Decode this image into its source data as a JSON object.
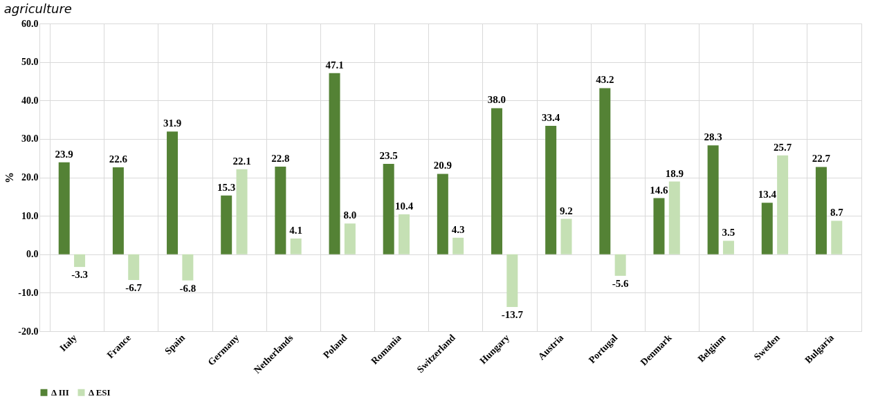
{
  "chart_data": {
    "type": "bar",
    "title": "agriculture",
    "ylabel": "%",
    "categories": [
      "Italy",
      "France",
      "Spain",
      "Germany",
      "Netherlands",
      "Poland",
      "Romania",
      "Switzerland",
      "Hungary",
      "Austria",
      "Portugal",
      "Denmark",
      "Belgium",
      "Sweden",
      "Bulgaria"
    ],
    "series": [
      {
        "name": "Δ III",
        "color": "#548235",
        "values": [
          23.9,
          22.6,
          31.9,
          15.3,
          22.8,
          47.1,
          23.5,
          20.9,
          38.0,
          33.4,
          43.2,
          14.6,
          28.3,
          13.4,
          22.7
        ],
        "value_labels": [
          "23.9",
          "22.6",
          "31.9",
          "15.3",
          "22.8",
          "47.1",
          "23.5",
          "20.9",
          "38.0",
          "33.4",
          "43.2",
          "14.6",
          "28.3",
          "13.4",
          "22.7"
        ]
      },
      {
        "name": "Δ ESI",
        "color": "#c5e0b4",
        "values": [
          -3.3,
          -6.7,
          -6.8,
          22.1,
          4.1,
          8.0,
          10.4,
          4.3,
          -13.7,
          9.2,
          -5.6,
          18.9,
          3.5,
          25.7,
          8.7
        ],
        "value_labels": [
          "-3.3",
          "-6.7",
          "-6.8",
          "22.1",
          "4.1",
          "8.0",
          "10.4",
          "4.3",
          "-13.7",
          "9.2",
          "-5.6",
          "18.9",
          "3.5",
          "25.7",
          "8.7"
        ]
      }
    ],
    "ylim": [
      -20,
      60
    ],
    "yticks": [
      {
        "value": -20,
        "label": "-20.0"
      },
      {
        "value": -10,
        "label": "-10.0"
      },
      {
        "value": 0,
        "label": "0.0"
      },
      {
        "value": 10,
        "label": "10.0"
      },
      {
        "value": 20,
        "label": "20.0"
      },
      {
        "value": 30,
        "label": "30.0"
      },
      {
        "value": 40,
        "label": "40.0"
      },
      {
        "value": 50,
        "label": "50.0"
      },
      {
        "value": 60,
        "label": "60.0"
      }
    ],
    "grid": true,
    "legend": "bottom"
  }
}
